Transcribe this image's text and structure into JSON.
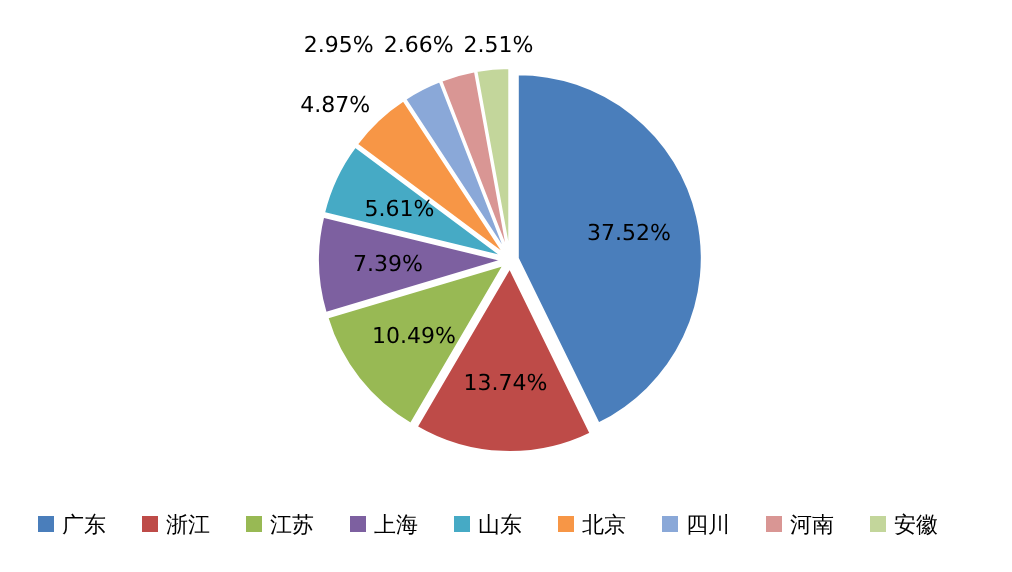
{
  "chart_data": {
    "type": "pie",
    "categories": [
      "广东",
      "浙江",
      "江苏",
      "上海",
      "山东",
      "北京",
      "四川",
      "河南",
      "安徽"
    ],
    "values": [
      37.52,
      13.74,
      10.49,
      7.39,
      5.61,
      4.87,
      2.95,
      2.66,
      2.51
    ],
    "colors": [
      "#4a7ebb",
      "#be4b48",
      "#98b954",
      "#7d60a0",
      "#46aac5",
      "#f79646",
      "#8aa8d8",
      "#d99694",
      "#c3d69b"
    ],
    "value_labels": [
      "37.52%",
      "13.74%",
      "10.49%",
      "7.39%",
      "5.61%",
      "4.87%",
      "2.95%",
      "2.66%",
      "2.51%"
    ],
    "legend": "bottom"
  }
}
